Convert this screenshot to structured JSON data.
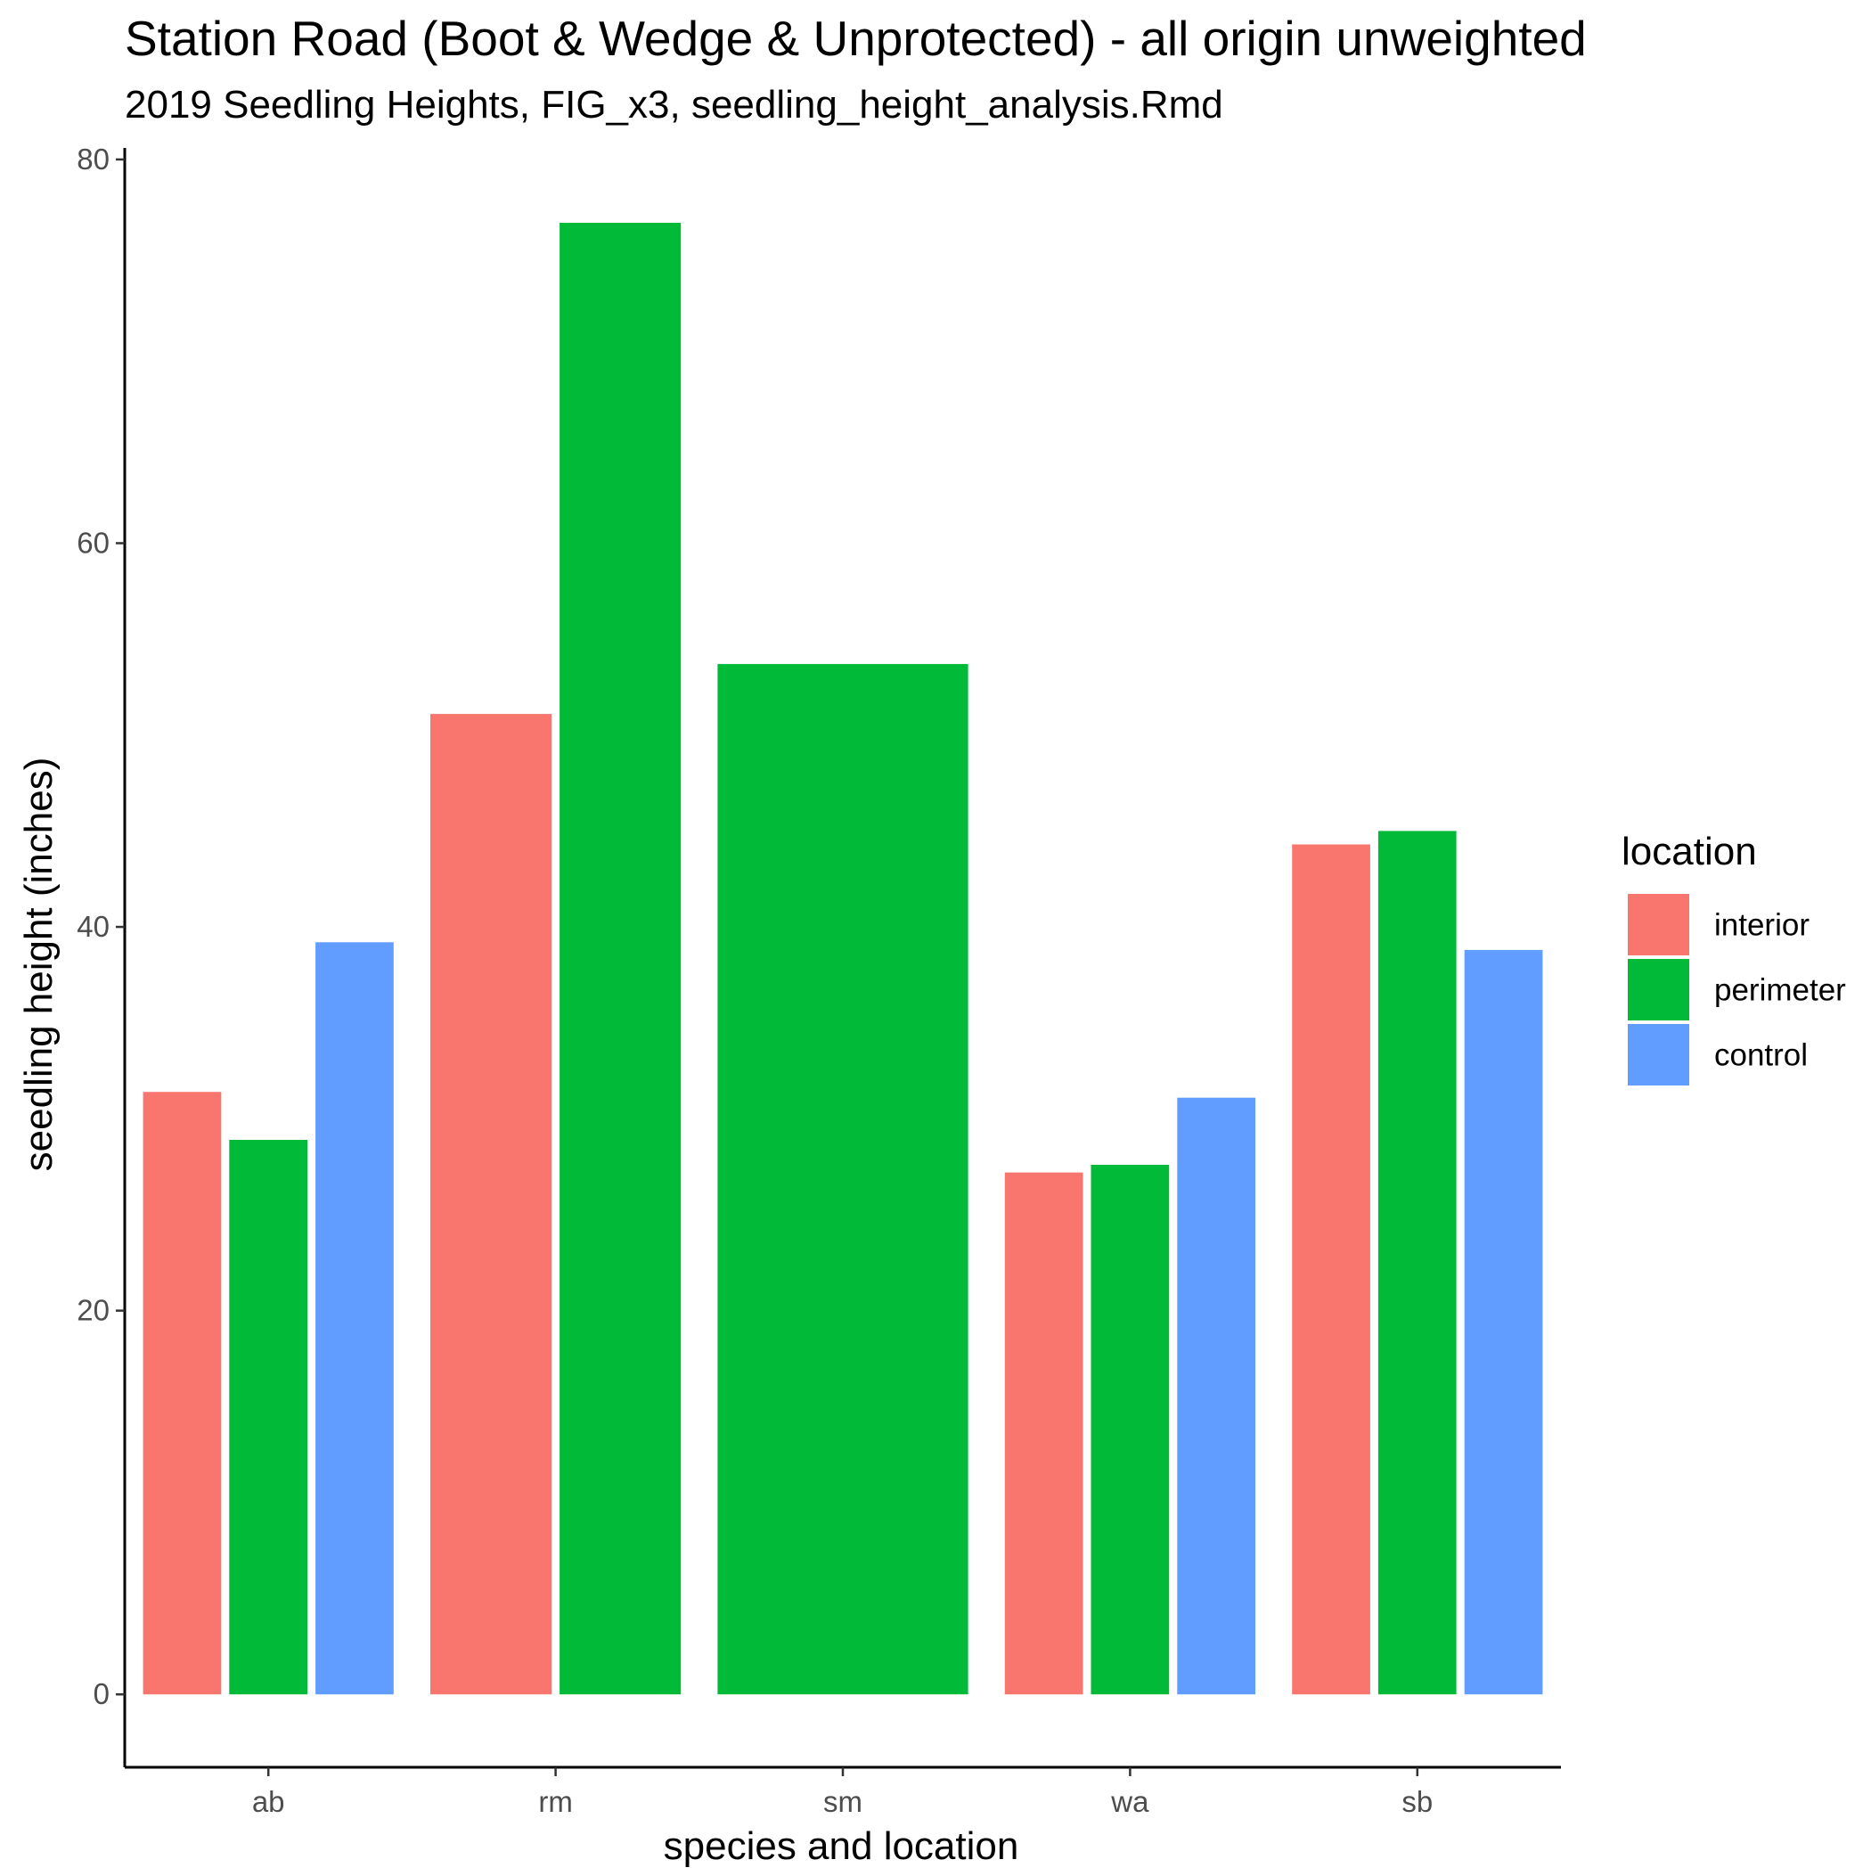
{
  "chart_data": {
    "type": "bar",
    "title": "Station Road (Boot & Wedge & Unprotected) - all origin unweighted",
    "subtitle": "2019 Seedling Heights, FIG_x3, seedling_height_analysis.Rmd",
    "xlabel": "species and location",
    "ylabel": "seedling height (inches)",
    "categories": [
      "ab",
      "rm",
      "sm",
      "wa",
      "sb"
    ],
    "ylim": [
      -3.8,
      80.6
    ],
    "yticks": [
      0,
      20,
      40,
      60,
      80
    ],
    "grid": false,
    "legend": {
      "title": "location",
      "position": "right",
      "entries": [
        "interior",
        "perimeter",
        "control"
      ]
    },
    "series": [
      {
        "name": "interior",
        "color": "#F8766D",
        "values": [
          31.4,
          51.1,
          null,
          27.2,
          44.3
        ]
      },
      {
        "name": "perimeter",
        "color": "#00BA38",
        "values": [
          28.9,
          76.7,
          53.7,
          27.6,
          45.0
        ]
      },
      {
        "name": "control",
        "color": "#619CFF",
        "values": [
          39.2,
          null,
          null,
          31.1,
          38.8
        ]
      }
    ]
  }
}
